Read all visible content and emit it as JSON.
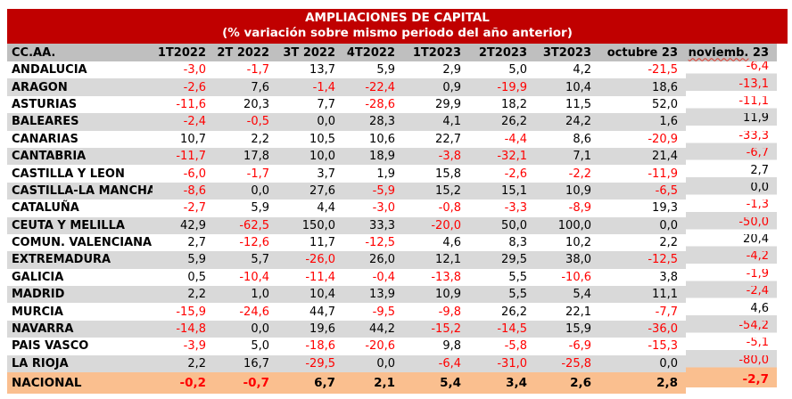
{
  "chart_data": {
    "type": "table",
    "title": "AMPLIACIONES DE CAPITAL",
    "subtitle": "(% variación sobre mismo periodo del año anterior)",
    "unit": "percent variation, decimal comma format",
    "columns": [
      "CC.AA.",
      "1T2022",
      "2T 2022",
      "3T 2022",
      "4T2022",
      "1T2023",
      "2T2023",
      "3T2023",
      "octubre 23",
      "noviemb. 23"
    ],
    "rows": [
      {
        "name": "ANDALUCIA",
        "values": [
          -3.0,
          -1.7,
          13.7,
          5.9,
          2.9,
          5.0,
          4.2,
          -21.5,
          -6.4
        ]
      },
      {
        "name": "ARAGON",
        "values": [
          -2.6,
          7.6,
          -1.4,
          -22.4,
          0.9,
          -19.9,
          10.4,
          18.6,
          -13.1
        ]
      },
      {
        "name": "ASTURIAS",
        "values": [
          -11.6,
          20.3,
          7.7,
          -28.6,
          29.9,
          18.2,
          11.5,
          52.0,
          -11.1
        ]
      },
      {
        "name": "BALEARES",
        "values": [
          -2.4,
          -0.5,
          0.0,
          28.3,
          4.1,
          26.2,
          24.2,
          1.6,
          11.9
        ]
      },
      {
        "name": "CANARIAS",
        "values": [
          10.7,
          2.2,
          10.5,
          10.6,
          22.7,
          -4.4,
          8.6,
          -20.9,
          -33.3
        ]
      },
      {
        "name": "CANTABRIA",
        "values": [
          -11.7,
          17.8,
          10.0,
          18.9,
          -3.8,
          -32.1,
          7.1,
          21.4,
          -6.7
        ]
      },
      {
        "name": "CASTILLA Y LEON",
        "values": [
          -6.0,
          -1.7,
          3.7,
          1.9,
          15.8,
          -2.6,
          -2.2,
          -11.9,
          2.7
        ]
      },
      {
        "name": "CASTILLA-LA MANCHA",
        "values": [
          -8.6,
          0.0,
          27.6,
          -5.9,
          15.2,
          15.1,
          10.9,
          -6.5,
          0.0
        ]
      },
      {
        "name": "CATALUÑA",
        "values": [
          -2.7,
          5.9,
          4.4,
          -3.0,
          -0.8,
          -3.3,
          -8.9,
          19.3,
          -1.3
        ]
      },
      {
        "name": "CEUTA Y MELILLA",
        "values": [
          42.9,
          -62.5,
          150.0,
          33.3,
          -20.0,
          50.0,
          100.0,
          0.0,
          -50.0
        ]
      },
      {
        "name": "COMUN. VALENCIANA",
        "values": [
          2.7,
          -12.6,
          11.7,
          -12.5,
          4.6,
          8.3,
          10.2,
          2.2,
          20.4
        ]
      },
      {
        "name": "EXTREMADURA",
        "values": [
          5.9,
          5.7,
          -26.0,
          26.0,
          12.1,
          29.5,
          38.0,
          -12.5,
          -4.2
        ]
      },
      {
        "name": "GALICIA",
        "values": [
          0.5,
          -10.4,
          -11.4,
          -0.4,
          -13.8,
          5.5,
          -10.6,
          3.8,
          -1.9
        ]
      },
      {
        "name": "MADRID",
        "values": [
          2.2,
          1.0,
          10.4,
          13.9,
          10.9,
          5.5,
          5.4,
          11.1,
          -2.4
        ]
      },
      {
        "name": "MURCIA",
        "values": [
          -15.9,
          -24.6,
          44.7,
          -9.5,
          -9.8,
          26.2,
          22.1,
          -7.7,
          4.6
        ]
      },
      {
        "name": "NAVARRA",
        "values": [
          -14.8,
          0.0,
          19.6,
          44.2,
          -15.2,
          -14.5,
          15.9,
          -36.0,
          -54.2
        ]
      },
      {
        "name": "PAIS VASCO",
        "values": [
          -3.9,
          5.0,
          -18.6,
          -20.6,
          9.8,
          -5.8,
          -6.9,
          -15.3,
          -5.1
        ]
      },
      {
        "name": "LA RIOJA",
        "values": [
          2.2,
          16.7,
          -29.5,
          0.0,
          -6.4,
          -31.0,
          -25.8,
          0.0,
          -80.0
        ]
      }
    ],
    "total_row": {
      "name": "NACIONAL",
      "values": [
        -0.2,
        -0.7,
        6.7,
        2.1,
        5.4,
        3.4,
        2.6,
        2.8,
        -2.7
      ]
    },
    "layout_hints": {
      "striped_rows": true,
      "negative_values_in_red": true,
      "total_row_highlighted": true
    }
  },
  "spellcheck": {
    "flagged_word": "noviemb."
  },
  "colors": {
    "accent_red": "#C00000",
    "negative_text": "#FF0000",
    "header_fill": "#BFBFBF",
    "row_stripe": "#D9D9D9",
    "total_fill": "#FABF8F",
    "title_text": "#FFFFFF",
    "body_text": "#000000"
  }
}
